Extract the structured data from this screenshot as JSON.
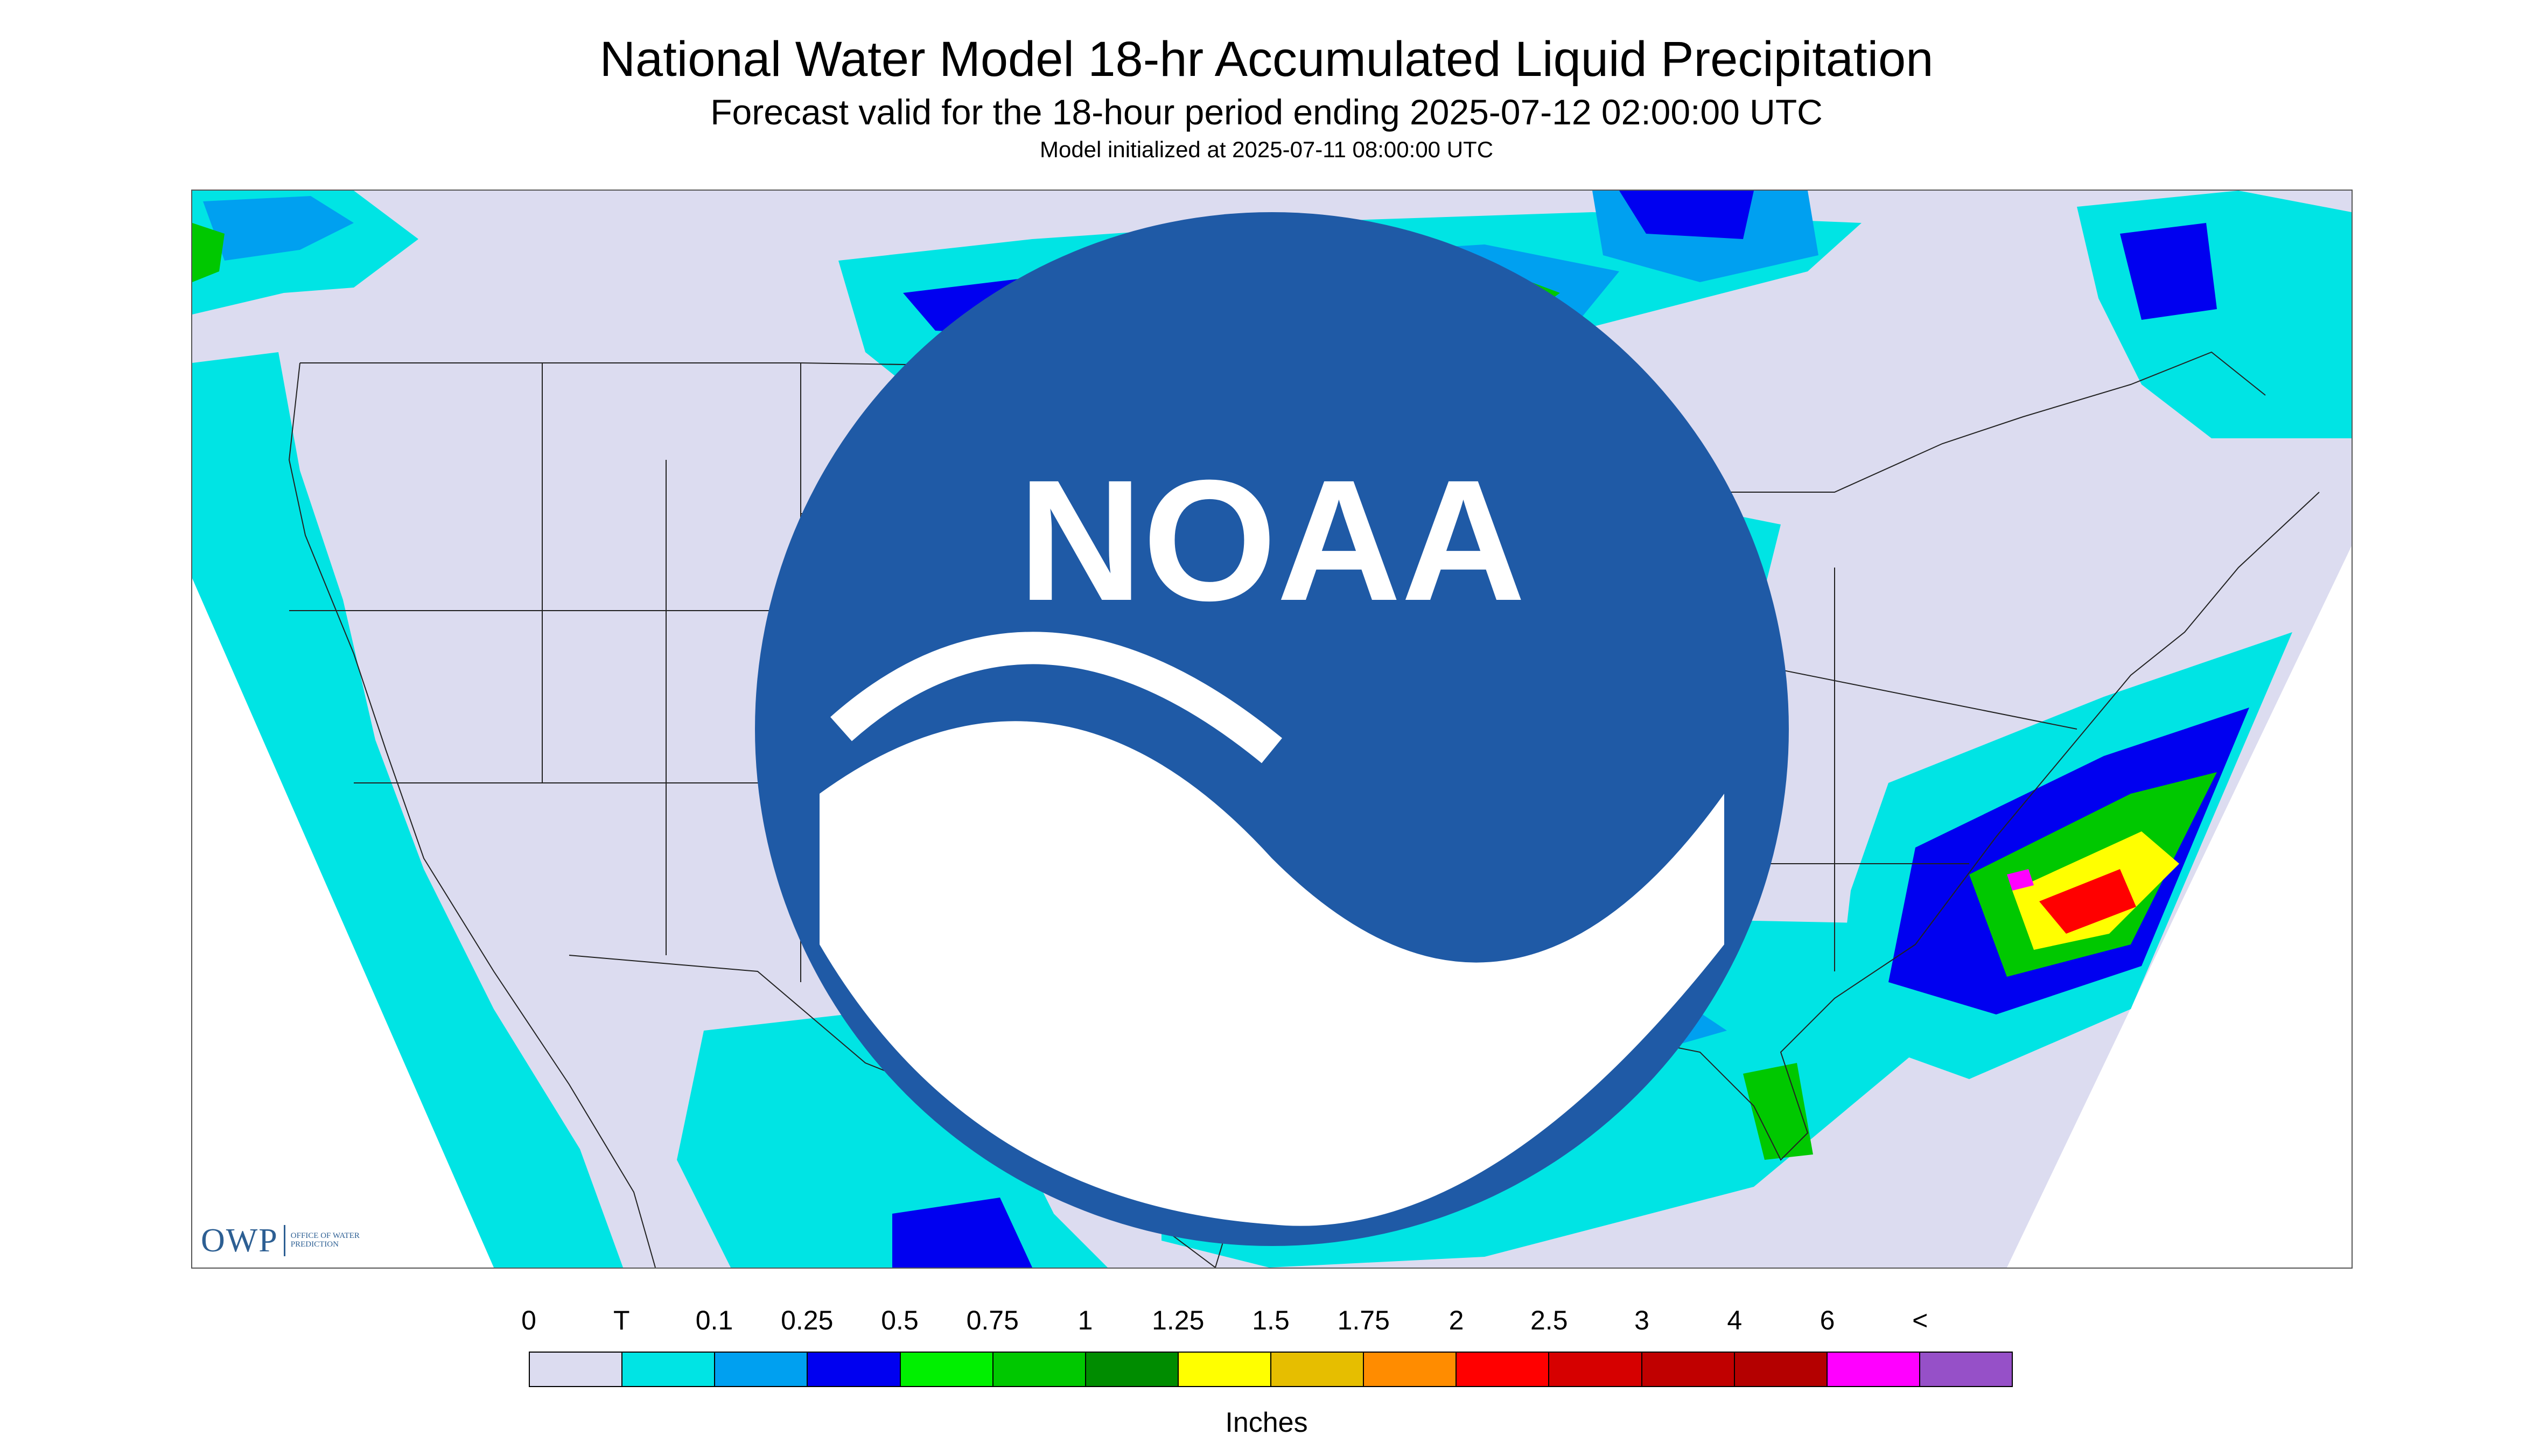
{
  "title": "National Water Model 18-hr Accumulated Liquid Precipitation",
  "subtitle": "Forecast valid for the 18-hour period ending 2025-07-12 02:00:00 UTC",
  "init_text": "Model initialized at 2025-07-11 08:00:00 UTC",
  "logos": {
    "owp_text": "OWP",
    "owp_subtext": "OFFICE OF WATER PREDICTION",
    "noaa_text": "NOAA"
  },
  "legend": {
    "labels": [
      "0",
      "T",
      "0.1",
      "0.25",
      "0.5",
      "0.75",
      "1",
      "1.25",
      "1.5",
      "1.75",
      "2",
      "2.5",
      "3",
      "4",
      "6",
      "<"
    ],
    "colors": [
      "#dcdcf0",
      "#00e4e4",
      "#00a0f0",
      "#0000f0",
      "#00f000",
      "#00c800",
      "#008c00",
      "#ffff00",
      "#e6be00",
      "#ff8c00",
      "#ff0000",
      "#d60000",
      "#c00000",
      "#b40000",
      "#ff00ff",
      "#9650c8"
    ],
    "units": "Inches"
  }
}
